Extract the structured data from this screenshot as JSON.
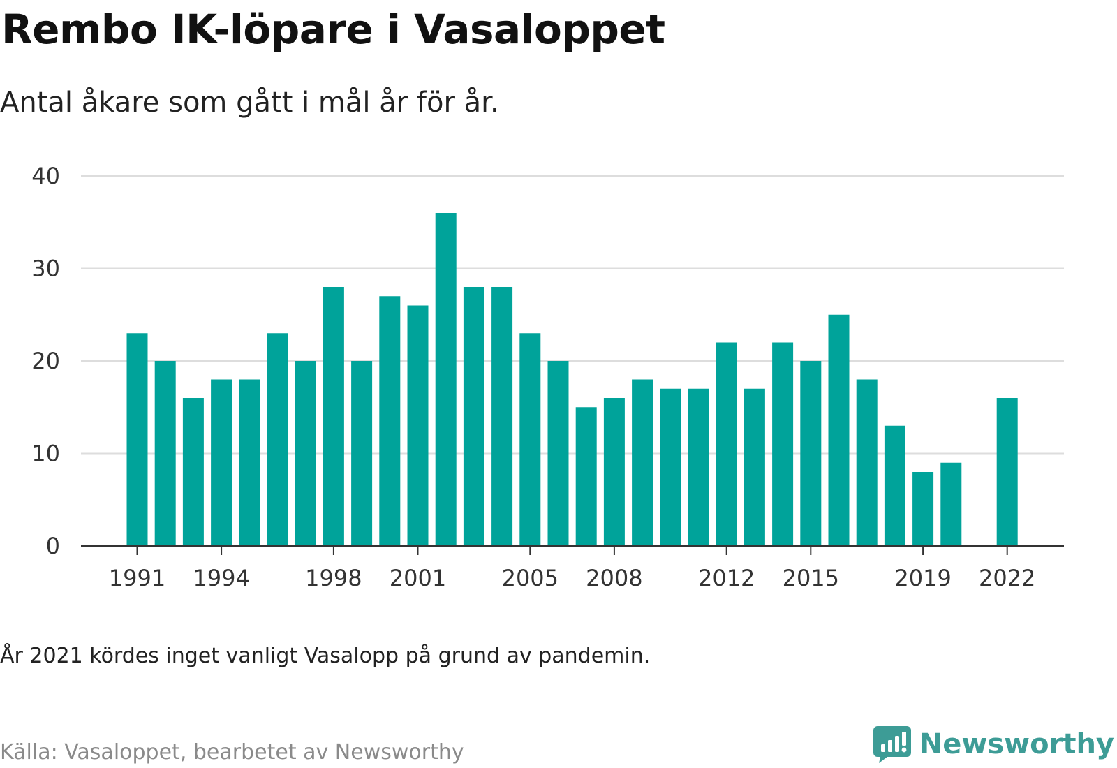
{
  "header": {
    "title": "Rembo IK-löpare i Vasaloppet",
    "subtitle": "Antal åkare som gått i mål år för år."
  },
  "footer": {
    "note": "År 2021 kördes inget vanligt Vasalopp på grund av pandemin.",
    "source": "Källa: Vasaloppet, bearbetet av Newsworthy",
    "brand": "Newsworthy",
    "brand_icon": "newsworthy-logo-icon"
  },
  "colors": {
    "bar": "#00a39a",
    "grid": "#dddddd",
    "axis": "#333333",
    "brand": "#3d9c96"
  },
  "chart_data": {
    "type": "bar",
    "categories": [
      "1991",
      "1992",
      "1993",
      "1994",
      "1995",
      "1996",
      "1997",
      "1998",
      "1999",
      "2000",
      "2001",
      "2002",
      "2003",
      "2004",
      "2005",
      "2006",
      "2007",
      "2008",
      "2009",
      "2010",
      "2011",
      "2012",
      "2013",
      "2014",
      "2015",
      "2016",
      "2017",
      "2018",
      "2019",
      "2020",
      "2021",
      "2022"
    ],
    "values": [
      23,
      20,
      16,
      18,
      18,
      23,
      20,
      28,
      20,
      27,
      26,
      36,
      28,
      28,
      23,
      20,
      15,
      16,
      18,
      17,
      17,
      22,
      17,
      22,
      20,
      25,
      18,
      13,
      8,
      9,
      null,
      16
    ],
    "x_tick_labels": [
      "1991",
      "1994",
      "1998",
      "2001",
      "2005",
      "2008",
      "2012",
      "2015",
      "2019",
      "2022"
    ],
    "y_ticks": [
      0,
      10,
      20,
      30,
      40
    ],
    "ylim": [
      0,
      40
    ],
    "grid": true,
    "legend": false
  }
}
